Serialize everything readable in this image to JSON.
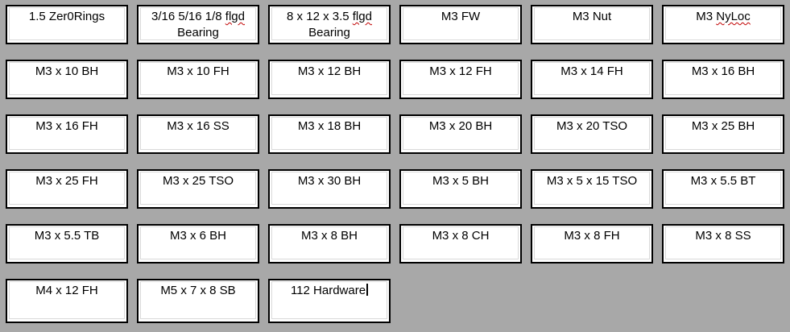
{
  "colors": {
    "background": "#a8a8a8",
    "cell_background": "#ffffff",
    "cell_border": "#000000",
    "inner_border": "#d9d9d9",
    "text": "#000000",
    "spellcheck_squiggle": "#c00000"
  },
  "grid": {
    "columns": 6,
    "rows": 6,
    "cell_count": 34
  },
  "labels": [
    {
      "segments": [
        {
          "text": "1.5 Zer0Rings"
        }
      ]
    },
    {
      "segments": [
        {
          "text": "3/16 5/16 1/8 "
        },
        {
          "text": "flgd",
          "misspelled": true
        },
        {
          "text": "Bearing",
          "break_before": true
        }
      ]
    },
    {
      "segments": [
        {
          "text": "8 x 12 x 3.5 "
        },
        {
          "text": "flgd",
          "misspelled": true
        },
        {
          "text": "Bearing",
          "break_before": true
        }
      ]
    },
    {
      "segments": [
        {
          "text": "M3 FW"
        }
      ]
    },
    {
      "segments": [
        {
          "text": "M3 Nut"
        }
      ]
    },
    {
      "segments": [
        {
          "text": "M3 "
        },
        {
          "text": "NyLoc",
          "misspelled": true
        }
      ]
    },
    {
      "segments": [
        {
          "text": "M3 x 10 BH"
        }
      ]
    },
    {
      "segments": [
        {
          "text": "M3 x 10 FH"
        }
      ]
    },
    {
      "segments": [
        {
          "text": "M3 x 12 BH"
        }
      ]
    },
    {
      "segments": [
        {
          "text": "M3 x 12 FH"
        }
      ]
    },
    {
      "segments": [
        {
          "text": "M3 x 14 FH"
        }
      ]
    },
    {
      "segments": [
        {
          "text": "M3 x 16 BH"
        }
      ]
    },
    {
      "segments": [
        {
          "text": "M3 x 16 FH"
        }
      ]
    },
    {
      "segments": [
        {
          "text": "M3 x 16 SS"
        }
      ]
    },
    {
      "segments": [
        {
          "text": "M3 x 18 BH"
        }
      ]
    },
    {
      "segments": [
        {
          "text": "M3 x 20 BH"
        }
      ]
    },
    {
      "segments": [
        {
          "text": "M3 x 20 TSO"
        }
      ]
    },
    {
      "segments": [
        {
          "text": "M3 x 25 BH"
        }
      ]
    },
    {
      "segments": [
        {
          "text": "M3 x 25 FH"
        }
      ]
    },
    {
      "segments": [
        {
          "text": "M3 x 25 TSO"
        }
      ]
    },
    {
      "segments": [
        {
          "text": "M3 x 30 BH"
        }
      ]
    },
    {
      "segments": [
        {
          "text": "M3 x 5 BH"
        }
      ]
    },
    {
      "segments": [
        {
          "text": "M3 x 5 x 15 TSO"
        }
      ]
    },
    {
      "segments": [
        {
          "text": "M3 x 5.5 BT"
        }
      ]
    },
    {
      "segments": [
        {
          "text": "M3 x 5.5 TB"
        }
      ]
    },
    {
      "segments": [
        {
          "text": "M3 x 6 BH"
        }
      ]
    },
    {
      "segments": [
        {
          "text": "M3 x 8 BH"
        }
      ]
    },
    {
      "segments": [
        {
          "text": "M3 x 8 CH"
        }
      ]
    },
    {
      "segments": [
        {
          "text": "M3 x 8 FH"
        }
      ]
    },
    {
      "segments": [
        {
          "text": "M3 x 8 SS"
        }
      ]
    },
    {
      "segments": [
        {
          "text": "M4 x 12 FH"
        }
      ]
    },
    {
      "segments": [
        {
          "text": "M5 x 7 x 8 SB"
        }
      ]
    },
    {
      "segments": [
        {
          "text": "112 Hardware"
        }
      ],
      "caret": true
    }
  ]
}
